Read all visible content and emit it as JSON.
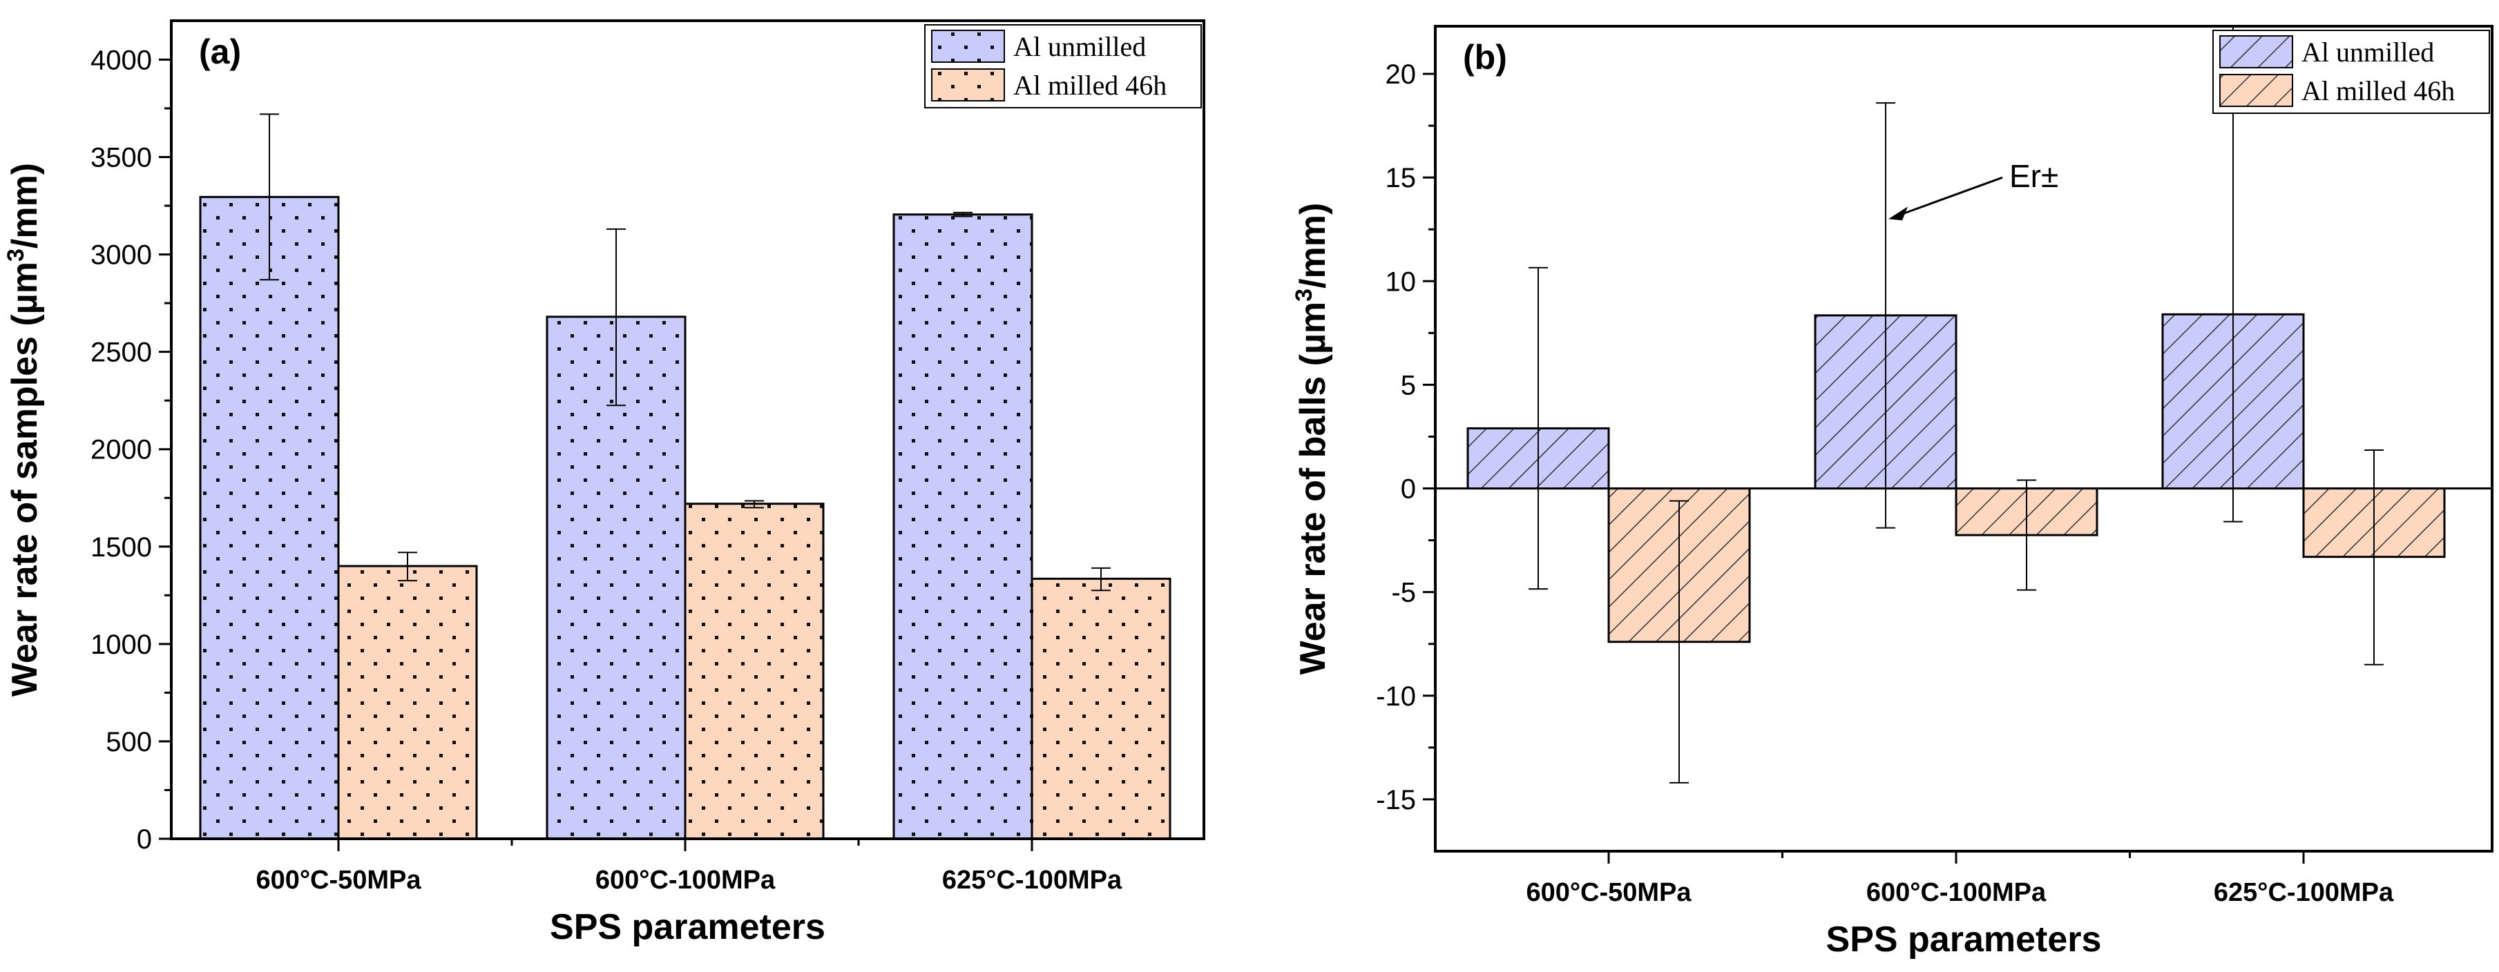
{
  "chart_data": [
    {
      "type": "bar",
      "panel_label": "(a)",
      "title": "",
      "xlabel": "SPS parameters",
      "ylabel_main": "Wear rate of samples (µm",
      "ylabel_sup": "3",
      "ylabel_end": "/mm)",
      "categories": [
        "600°C-50MPa",
        "600°C-100MPa",
        "625°C-100MPa"
      ],
      "ylim": [
        0,
        4200
      ],
      "yticks": [
        0,
        500,
        1000,
        1500,
        2000,
        2500,
        3000,
        3500,
        4000
      ],
      "pattern": "dots",
      "legend_position": "top-right",
      "series": [
        {
          "name": "Al unmilled",
          "color": "#c9cbfb",
          "values": [
            3295,
            2680,
            3205
          ],
          "err_low": [
            2870,
            2225,
            3195
          ],
          "err_high": [
            3720,
            3130,
            3215
          ]
        },
        {
          "name": "Al milled 46h",
          "color": "#fdd8bf",
          "values": [
            1400,
            1720,
            1335
          ],
          "err_low": [
            1325,
            1700,
            1275
          ],
          "err_high": [
            1470,
            1735,
            1390
          ]
        }
      ]
    },
    {
      "type": "bar",
      "panel_label": "(b)",
      "title": "",
      "xlabel": "SPS parameters",
      "ylabel_main": "Wear rate of balls (µm",
      "ylabel_sup": "3",
      "ylabel_end": "/mm)",
      "categories": [
        "600°C-50MPa",
        "600°C-100MPa",
        "625°C-100MPa"
      ],
      "ylim": [
        -17.5,
        22.3
      ],
      "yticks": [
        -15,
        -10,
        -5,
        0,
        5,
        10,
        15,
        20
      ],
      "pattern": "hatch",
      "legend_position": "top-right",
      "annotation": "Er±",
      "series": [
        {
          "name": "Al unmilled",
          "color": "#c9cbfb",
          "values": [
            2.9,
            8.35,
            8.4
          ],
          "err_low": [
            -4.85,
            -1.9,
            -1.6
          ],
          "err_high": [
            10.65,
            18.6,
            22.3
          ]
        },
        {
          "name": "Al milled 46h",
          "color": "#fdd8bf",
          "values": [
            -7.4,
            -2.25,
            -3.3
          ],
          "err_low": [
            -14.2,
            -4.9,
            -8.5
          ],
          "err_high": [
            -0.6,
            0.4,
            1.85
          ]
        }
      ]
    }
  ]
}
